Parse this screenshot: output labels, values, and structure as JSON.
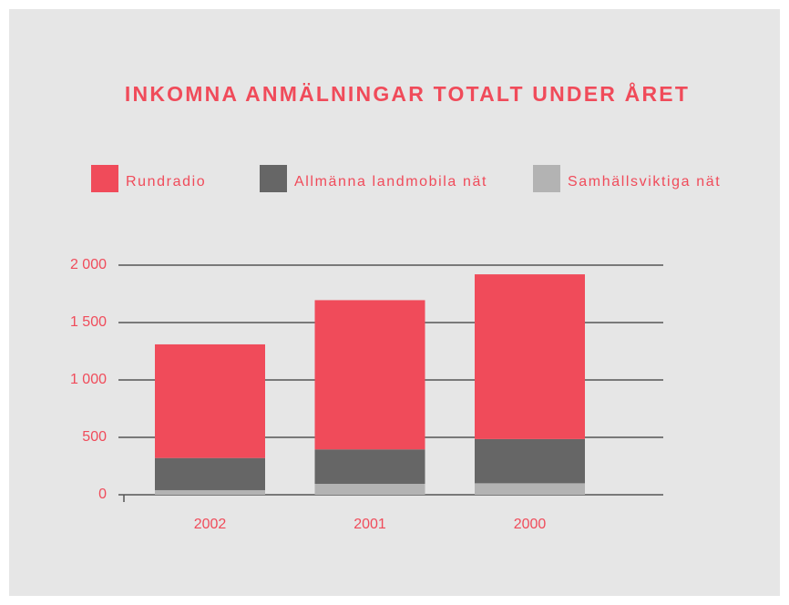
{
  "chart_data": {
    "type": "stacked_bar",
    "title": "INKOMNA ANMÄLNINGAR TOTALT UNDER ÅRET",
    "categories": [
      "2002",
      "2001",
      "2000"
    ],
    "series": [
      {
        "name": "Samhällsviktiga nät",
        "color": "#b3b3b3",
        "values": [
          40,
          95,
          100
        ]
      },
      {
        "name": "Allmänna landmobila nät",
        "color": "#666666",
        "values": [
          280,
          300,
          385
        ]
      },
      {
        "name": "Rundradio",
        "color": "#f04b5a",
        "values": [
          990,
          1300,
          1435
        ]
      }
    ],
    "legend_order": [
      "Rundradio",
      "Allmänna landmobila nät",
      "Samhällsviktiga nät"
    ],
    "ylim": [
      0,
      2000
    ],
    "yticks": [
      0,
      500,
      {
        "value": 1000,
        "label": "1 000"
      },
      {
        "value": 1500,
        "label": "1 500"
      },
      {
        "value": 2000,
        "label": "2 000"
      }
    ],
    "grid": true,
    "legend": "top"
  }
}
